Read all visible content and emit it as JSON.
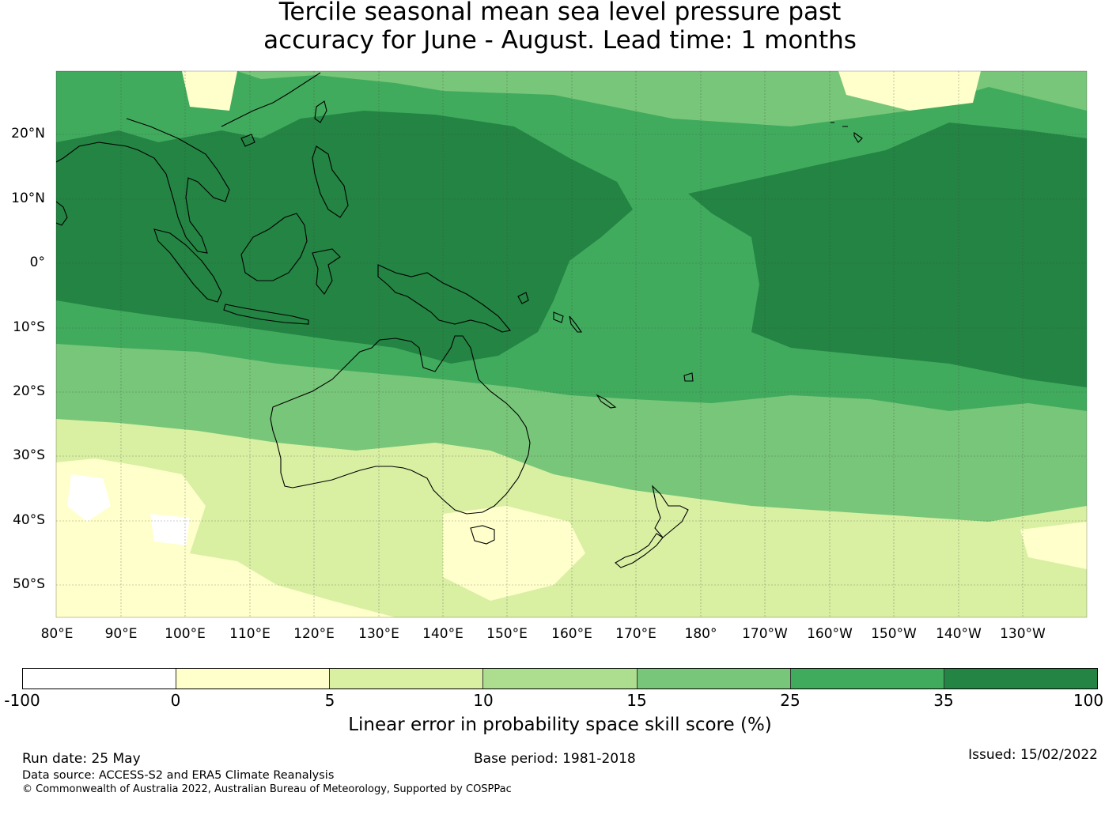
{
  "title": {
    "line1": "Tercile seasonal mean sea level pressure past",
    "line2": "accuracy for June - August. Lead time: 1 months"
  },
  "map": {
    "lat_labels": [
      "20°N",
      "10°N",
      "0°",
      "10°S",
      "20°S",
      "30°S",
      "40°S",
      "50°S"
    ],
    "lon_labels": [
      "80°E",
      "90°E",
      "100°E",
      "110°E",
      "120°E",
      "130°E",
      "140°E",
      "150°E",
      "160°E",
      "170°E",
      "180°",
      "170°W",
      "160°W",
      "150°W",
      "140°W",
      "130°W"
    ]
  },
  "legend": {
    "ticks": [
      "-100",
      "0",
      "5",
      "10",
      "15",
      "25",
      "35",
      "100"
    ],
    "colors": [
      "#ffffff",
      "#ffffcc",
      "#d9f0a3",
      "#addd8e",
      "#78c679",
      "#41ab5d",
      "#238443"
    ],
    "label": "Linear error in probability space skill score (%)"
  },
  "footer": {
    "run_date": "Run date: 25 May",
    "base_period": "Base period: 1981-2018",
    "issued": "Issued: 15/02/2022",
    "data_source": "Data source: ACCESS-S2 and ERA5 Climate Reanalysis",
    "copyright": "© Commonwealth of Australia 2022, Australian Bureau of Meteorology, Supported by COSPPac"
  }
}
